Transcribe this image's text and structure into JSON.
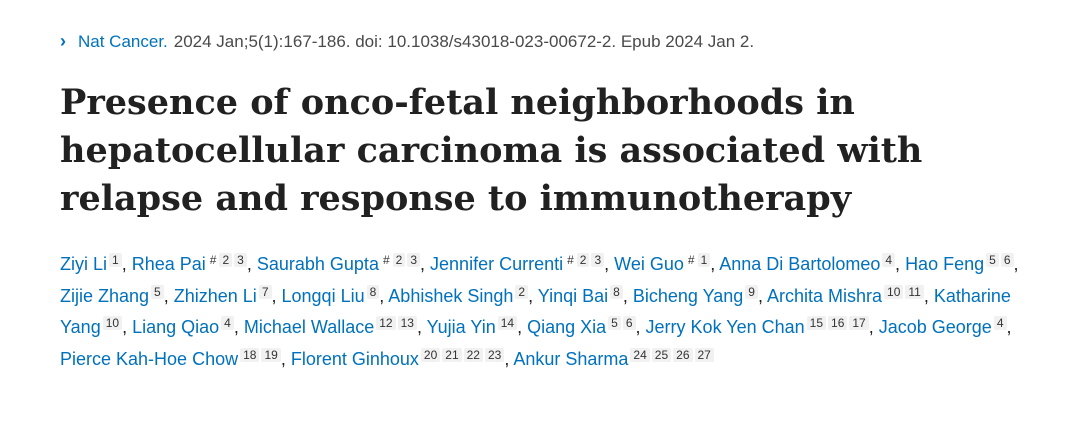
{
  "citation": {
    "journal": "Nat Cancer.",
    "details": "2024 Jan;5(1):167-186. doi: 10.1038/s43018-023-00672-2. Epub 2024 Jan 2."
  },
  "title": "Presence of onco-fetal neighborhoods in hepatocellular carcinoma is associated with relapse and response to immunotherapy",
  "authors": [
    {
      "name": "Ziyi Li",
      "equal": "",
      "affs": [
        "1"
      ]
    },
    {
      "name": "Rhea Pai",
      "equal": "#",
      "affs": [
        "2",
        "3"
      ]
    },
    {
      "name": "Saurabh Gupta",
      "equal": "#",
      "affs": [
        "2",
        "3"
      ]
    },
    {
      "name": "Jennifer Currenti",
      "equal": "#",
      "affs": [
        "2",
        "3"
      ]
    },
    {
      "name": "Wei Guo",
      "equal": "#",
      "affs": [
        "1"
      ]
    },
    {
      "name": "Anna Di Bartolomeo",
      "equal": "",
      "affs": [
        "4"
      ]
    },
    {
      "name": "Hao Feng",
      "equal": "",
      "affs": [
        "5",
        "6"
      ]
    },
    {
      "name": "Zijie Zhang",
      "equal": "",
      "affs": [
        "5"
      ]
    },
    {
      "name": "Zhizhen Li",
      "equal": "",
      "affs": [
        "7"
      ]
    },
    {
      "name": "Longqi Liu",
      "equal": "",
      "affs": [
        "8"
      ]
    },
    {
      "name": "Abhishek Singh",
      "equal": "",
      "affs": [
        "2"
      ]
    },
    {
      "name": "Yinqi Bai",
      "equal": "",
      "affs": [
        "8"
      ]
    },
    {
      "name": "Bicheng Yang",
      "equal": "",
      "affs": [
        "9"
      ]
    },
    {
      "name": "Archita Mishra",
      "equal": "",
      "affs": [
        "10",
        "11"
      ]
    },
    {
      "name": "Katharine Yang",
      "equal": "",
      "affs": [
        "10"
      ]
    },
    {
      "name": "Liang Qiao",
      "equal": "",
      "affs": [
        "4"
      ]
    },
    {
      "name": "Michael Wallace",
      "equal": "",
      "affs": [
        "12",
        "13"
      ]
    },
    {
      "name": "Yujia Yin",
      "equal": "",
      "affs": [
        "14"
      ]
    },
    {
      "name": "Qiang Xia",
      "equal": "",
      "affs": [
        "5",
        "6"
      ]
    },
    {
      "name": "Jerry Kok Yen Chan",
      "equal": "",
      "affs": [
        "15",
        "16",
        "17"
      ]
    },
    {
      "name": "Jacob George",
      "equal": "",
      "affs": [
        "4"
      ]
    },
    {
      "name": "Pierce Kah-Hoe Chow",
      "equal": "",
      "affs": [
        "18",
        "19"
      ]
    },
    {
      "name": "Florent Ginhoux",
      "equal": "",
      "affs": [
        "20",
        "21",
        "22",
        "23"
      ]
    },
    {
      "name": "Ankur Sharma",
      "equal": "",
      "affs": [
        "24",
        "25",
        "26",
        "27"
      ]
    }
  ],
  "colors": {
    "link": "#0071bc",
    "text": "#212121",
    "badge_bg": "#f1f1f1"
  },
  "icons": {
    "citation_chevron": "chevron-right-icon"
  }
}
